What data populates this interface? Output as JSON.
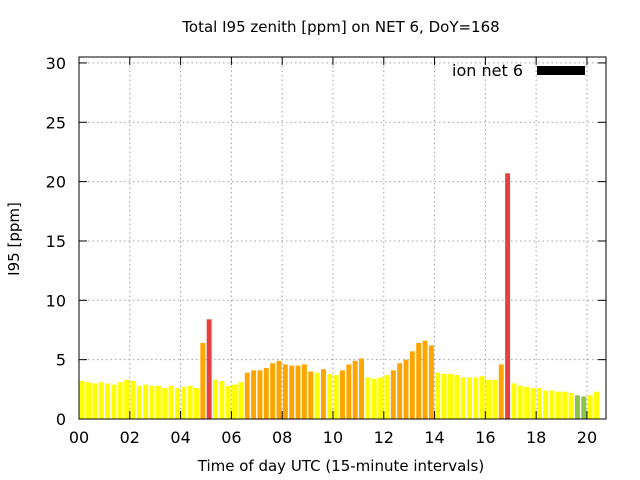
{
  "chart_data": {
    "type": "bar",
    "title": "Total I95 zenith [ppm] on NET 6, DoY=168",
    "xlabel": "Time of day UTC (15-minute intervals)",
    "ylabel": "I95 [ppm]",
    "xlim": [
      0,
      20.75
    ],
    "ylim": [
      0,
      30.5
    ],
    "x_ticks": [
      0,
      2,
      4,
      6,
      8,
      10,
      12,
      14,
      16,
      18,
      20
    ],
    "x_tick_labels": [
      "00",
      "02",
      "04",
      "06",
      "08",
      "10",
      "12",
      "14",
      "16",
      "18",
      "20"
    ],
    "y_ticks": [
      0,
      5,
      10,
      15,
      20,
      25,
      30
    ],
    "y_tick_labels": [
      "0",
      "5",
      "10",
      "15",
      "20",
      "25",
      "30"
    ],
    "grid": true,
    "legend": {
      "label": "ion net 6",
      "color": "#000000",
      "position": "top-right"
    },
    "bin_hours": 0.25,
    "colors": {
      "yellow": "#ffff00",
      "orange": "#ffa500",
      "red": "#e84040",
      "green": "#8cc44a"
    },
    "series": [
      {
        "values": [
          3.2,
          3.1,
          3.0,
          3.1,
          3.0,
          2.9,
          3.1,
          3.3,
          3.2,
          2.8,
          2.9,
          2.8,
          2.8,
          2.6,
          2.8,
          2.6,
          2.7,
          2.8,
          2.6,
          6.4,
          8.4,
          3.3,
          3.2,
          2.8,
          2.9,
          3.1,
          3.9,
          4.1,
          4.1,
          4.3,
          4.7,
          4.9,
          4.6,
          4.5,
          4.5,
          4.6,
          4.0,
          3.9,
          4.2,
          3.8,
          3.7,
          4.1,
          4.6,
          4.9,
          5.1,
          3.5,
          3.4,
          3.5,
          3.7,
          4.1,
          4.7,
          5.0,
          5.7,
          6.4,
          6.6,
          6.2,
          3.9,
          3.8,
          3.8,
          3.7,
          3.5,
          3.5,
          3.5,
          3.6,
          3.3,
          3.3,
          4.6,
          20.7,
          3.0,
          2.8,
          2.7,
          2.6,
          2.6,
          2.4,
          2.4,
          2.3,
          2.3,
          2.2,
          2.0,
          1.9,
          2.0,
          2.3
        ],
        "colors": [
          "yellow",
          "yellow",
          "yellow",
          "yellow",
          "yellow",
          "yellow",
          "yellow",
          "yellow",
          "yellow",
          "yellow",
          "yellow",
          "yellow",
          "yellow",
          "yellow",
          "yellow",
          "yellow",
          "yellow",
          "yellow",
          "yellow",
          "orange",
          "red",
          "yellow",
          "yellow",
          "yellow",
          "yellow",
          "yellow",
          "orange",
          "orange",
          "orange",
          "orange",
          "orange",
          "orange",
          "orange",
          "orange",
          "orange",
          "orange",
          "orange",
          "yellow",
          "orange",
          "yellow",
          "yellow",
          "orange",
          "orange",
          "orange",
          "orange",
          "yellow",
          "yellow",
          "yellow",
          "yellow",
          "orange",
          "orange",
          "orange",
          "orange",
          "orange",
          "orange",
          "orange",
          "yellow",
          "yellow",
          "yellow",
          "yellow",
          "yellow",
          "yellow",
          "yellow",
          "yellow",
          "yellow",
          "yellow",
          "orange",
          "red",
          "yellow",
          "yellow",
          "yellow",
          "yellow",
          "yellow",
          "yellow",
          "yellow",
          "yellow",
          "yellow",
          "yellow",
          "green",
          "green",
          "yellow",
          "yellow"
        ]
      }
    ]
  }
}
